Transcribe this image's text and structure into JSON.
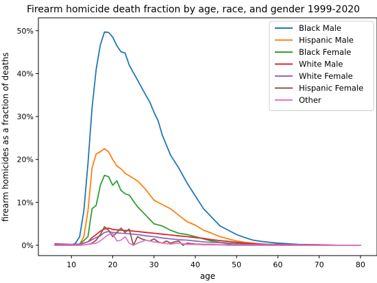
{
  "chart_data": {
    "type": "line",
    "title": "Firearm homicide death fraction by age, race, and gender 1999-2020",
    "xlabel": "age",
    "ylabel": "firearm homicides as a fraction of deaths",
    "xlim": [
      2,
      84
    ],
    "ylim": [
      -0.024,
      0.53
    ],
    "x_ticks": [
      10,
      20,
      30,
      40,
      50,
      60,
      70,
      80
    ],
    "y_ticks": [
      0,
      0.1,
      0.2,
      0.3,
      0.4,
      0.5
    ],
    "y_tick_labels": [
      "0%",
      "10%",
      "20%",
      "30%",
      "40%",
      "50%"
    ],
    "grid": false,
    "legend_position": "top-right",
    "series": [
      {
        "name": "Black Male",
        "color": "#1f77b4",
        "x": [
          6,
          8,
          10,
          11,
          12,
          13,
          14,
          15,
          16,
          17,
          18,
          19,
          20,
          21,
          22,
          23,
          24,
          26,
          28,
          29,
          30,
          31,
          32,
          34,
          36,
          38,
          40,
          42,
          44,
          46,
          48,
          50,
          52,
          54,
          56,
          58,
          60,
          65,
          70,
          75,
          80
        ],
        "y": [
          0,
          0,
          0,
          0.005,
          0.02,
          0.08,
          0.19,
          0.32,
          0.41,
          0.467,
          0.497,
          0.496,
          0.485,
          0.465,
          0.451,
          0.448,
          0.42,
          0.385,
          0.35,
          0.333,
          0.31,
          0.29,
          0.257,
          0.21,
          0.18,
          0.145,
          0.115,
          0.085,
          0.065,
          0.045,
          0.035,
          0.025,
          0.018,
          0.012,
          0.009,
          0.007,
          0.005,
          0.002,
          0.001,
          0,
          0
        ]
      },
      {
        "name": "Hispanic Male",
        "color": "#ff7f0e",
        "x": [
          6,
          10,
          12,
          13,
          14,
          15,
          16,
          17,
          18,
          19,
          20,
          21,
          22,
          23,
          24,
          26,
          28,
          30,
          32,
          34,
          36,
          38,
          40,
          42,
          44,
          46,
          48,
          50,
          52,
          54,
          56,
          58,
          60,
          65,
          70,
          75,
          80
        ],
        "y": [
          0,
          0,
          0.003,
          0.02,
          0.08,
          0.18,
          0.213,
          0.218,
          0.225,
          0.218,
          0.2,
          0.185,
          0.178,
          0.168,
          0.162,
          0.15,
          0.13,
          0.105,
          0.095,
          0.085,
          0.07,
          0.055,
          0.047,
          0.035,
          0.028,
          0.02,
          0.015,
          0.01,
          0.007,
          0.005,
          0.003,
          0.002,
          0.002,
          0.001,
          0,
          0,
          0
        ]
      },
      {
        "name": "Black Female",
        "color": "#2ca02c",
        "x": [
          6,
          10,
          12,
          14,
          15,
          16,
          17,
          18,
          19,
          20,
          21,
          22,
          23,
          24,
          26,
          28,
          30,
          32,
          34,
          36,
          38,
          40,
          42,
          44,
          46,
          48,
          50,
          52,
          54,
          56,
          58,
          60,
          65,
          70,
          75,
          80
        ],
        "y": [
          0,
          0,
          0.002,
          0.02,
          0.085,
          0.093,
          0.14,
          0.163,
          0.16,
          0.14,
          0.15,
          0.128,
          0.12,
          0.117,
          0.09,
          0.07,
          0.05,
          0.045,
          0.035,
          0.028,
          0.025,
          0.02,
          0.015,
          0.01,
          0.007,
          0.005,
          0.004,
          0.003,
          0.002,
          0.001,
          0.001,
          0.001,
          0,
          0,
          0,
          0
        ]
      },
      {
        "name": "White Male",
        "color": "#d62728",
        "x": [
          6,
          10,
          12,
          14,
          15,
          16,
          17,
          18,
          19,
          20,
          22,
          24,
          26,
          28,
          30,
          32,
          34,
          36,
          38,
          40,
          42,
          44,
          46,
          48,
          50,
          52,
          54,
          56,
          58,
          60,
          65,
          70,
          75,
          80
        ],
        "y": [
          0.001,
          0,
          0.002,
          0.008,
          0.018,
          0.025,
          0.033,
          0.038,
          0.04,
          0.037,
          0.035,
          0.034,
          0.032,
          0.03,
          0.028,
          0.026,
          0.024,
          0.022,
          0.02,
          0.018,
          0.016,
          0.013,
          0.011,
          0.009,
          0.007,
          0.005,
          0.004,
          0.003,
          0.002,
          0.002,
          0.001,
          0.001,
          0,
          0
        ],
        "note": "approx"
      },
      {
        "name": "White Female",
        "color": "#9467bd",
        "x": [
          6,
          10,
          12,
          14,
          16,
          17,
          18,
          19,
          20,
          22,
          24,
          26,
          28,
          30,
          32,
          34,
          36,
          38,
          40,
          42,
          44,
          46,
          48,
          50,
          52,
          55,
          60,
          65,
          70,
          75,
          80
        ],
        "y": [
          0.004,
          0.002,
          0.003,
          0.008,
          0.018,
          0.022,
          0.03,
          0.032,
          0.03,
          0.028,
          0.027,
          0.025,
          0.022,
          0.02,
          0.017,
          0.015,
          0.013,
          0.012,
          0.01,
          0.008,
          0.007,
          0.006,
          0.004,
          0.003,
          0.002,
          0.002,
          0.001,
          0.001,
          0,
          0,
          0
        ]
      },
      {
        "name": "Hispanic Female",
        "color": "#8c564b",
        "x": [
          6,
          10,
          12,
          14,
          15,
          16,
          17,
          18,
          19,
          20,
          21,
          22,
          23,
          24,
          25,
          26,
          27,
          28,
          29,
          30,
          31,
          32,
          33,
          34,
          35,
          36,
          37,
          38,
          40,
          42,
          44,
          46,
          48,
          50,
          55,
          60,
          70,
          80
        ],
        "y": [
          0,
          0,
          0,
          0.002,
          0.005,
          0.012,
          0.025,
          0.043,
          0.035,
          0.02,
          0.03,
          0.04,
          0.03,
          0.038,
          0,
          0.02,
          0.015,
          0.012,
          0.01,
          0.015,
          0.008,
          0.005,
          0.01,
          0.005,
          0.008,
          0.01,
          0,
          0.005,
          0.003,
          0.002,
          0.002,
          0.001,
          0.001,
          0,
          0,
          0,
          0,
          0
        ]
      },
      {
        "name": "Other",
        "color": "#e377c2",
        "x": [
          6,
          10,
          12,
          14,
          16,
          17,
          18,
          19,
          20,
          21,
          22,
          23,
          24,
          25,
          26,
          28,
          30,
          32,
          34,
          36,
          38,
          40,
          42,
          44,
          46,
          48,
          50,
          55,
          60,
          70,
          80
        ],
        "y": [
          0,
          0,
          0,
          0.002,
          0.005,
          0.01,
          0.018,
          0.025,
          0.028,
          0.01,
          0.012,
          0.02,
          0.005,
          0,
          0.005,
          0.012,
          0.008,
          0.005,
          0.003,
          0.005,
          0.002,
          0.002,
          0.001,
          0.001,
          0.001,
          0,
          0,
          0,
          0,
          0,
          0
        ]
      }
    ]
  }
}
